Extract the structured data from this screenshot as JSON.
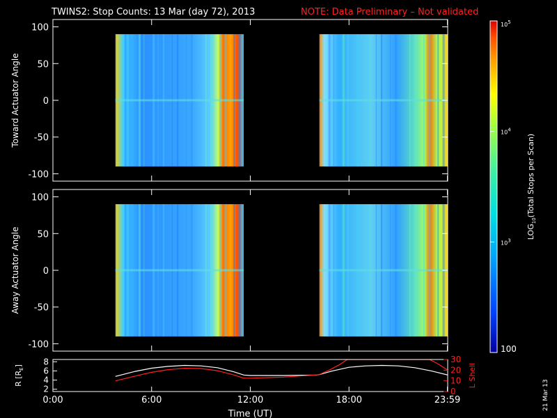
{
  "header": {
    "title": "TWINS2: Stop Counts: 13 Mar (day  72), 2013",
    "note": "NOTE: Data Preliminary – Not validated",
    "note_color": "#ff2020"
  },
  "stamp": "21 Mar 13",
  "chart_data": [
    {
      "type": "heatmap",
      "title": "",
      "xlabel": "",
      "ylabel": "Toward Actuator Angle",
      "xlim": [
        0,
        24
      ],
      "ylim": [
        -110,
        110
      ],
      "yticks": [
        "-100",
        "-50",
        "0",
        "50",
        "100"
      ],
      "data_intervals_ut_hours": [
        [
          3.8,
          11.6
        ],
        [
          16.2,
          24.0
        ]
      ],
      "angle_range": [
        -90,
        90
      ],
      "colorscale": "log",
      "note": ""
    },
    {
      "type": "heatmap",
      "title": "",
      "xlabel": "",
      "ylabel": "Away Actuator Angle",
      "xlim": [
        0,
        24
      ],
      "ylim": [
        -110,
        110
      ],
      "yticks": [
        "-100",
        "-50",
        "0",
        "50",
        "100"
      ],
      "data_intervals_ut_hours": [
        [
          3.8,
          11.6
        ],
        [
          16.2,
          24.0
        ]
      ],
      "angle_range": [
        -90,
        90
      ],
      "colorscale": "log"
    },
    {
      "type": "line",
      "title": "",
      "xlabel": "Time (UT)",
      "ylabel_left": "R [R",
      "ylabel_left_sub": "E",
      "ylabel_left_end": "]",
      "ylabel_right": "L Shell",
      "xlim": [
        0,
        24
      ],
      "ylim_left": [
        1.5,
        8.5
      ],
      "ylim_right": [
        0,
        30
      ],
      "yticks_left": [
        "2",
        "4",
        "6",
        "8"
      ],
      "yticks_right": [
        "0",
        "10",
        "20",
        "30"
      ],
      "xtick_labels": [
        "0:00",
        "6:00",
        "12:00",
        "18:00",
        "23:59"
      ],
      "xtick_values": [
        0,
        6,
        12,
        18,
        23.98
      ],
      "series": [
        {
          "name": "R",
          "color": "#ffffff",
          "axis": "left",
          "x": [
            3.8,
            5,
            6,
            7,
            8,
            9,
            10,
            11,
            11.6,
            12,
            14,
            16,
            16.2,
            17,
            18,
            19,
            20,
            21,
            22,
            23,
            24
          ],
          "y": [
            4.8,
            5.9,
            6.6,
            7.0,
            7.2,
            7.1,
            6.7,
            5.8,
            5.1,
            5.0,
            5.0,
            5.1,
            5.2,
            6.0,
            6.8,
            7.1,
            7.2,
            7.1,
            6.7,
            6.0,
            5.1
          ]
        },
        {
          "name": "L Shell",
          "color": "#ff2020",
          "axis": "right",
          "x": [
            3.8,
            5,
            6,
            7,
            8,
            9,
            10,
            11,
            11.6,
            12,
            14,
            16,
            16.2,
            16.8,
            17.4,
            17.9,
            22.9,
            23.4,
            24
          ],
          "y": [
            10.0,
            14.5,
            18.0,
            20.5,
            21.8,
            21.5,
            19.5,
            15.5,
            12.5,
            12.5,
            13.5,
            15.5,
            16.0,
            20.0,
            25.0,
            30.0,
            30.0,
            26.0,
            20.0
          ]
        }
      ]
    }
  ],
  "colorbar": {
    "label_pre": "LOG",
    "label_sub": "10",
    "label_post": "(Total Stops per Scan)",
    "ticks": [
      "100",
      "10",
      "10",
      "10"
    ],
    "tick_exponents": [
      "",
      "3",
      "4",
      "5"
    ],
    "tick_values": [
      100,
      1000,
      10000,
      100000
    ],
    "range": [
      100,
      100000
    ],
    "colors": [
      "#0000a0",
      "#0040ff",
      "#00a0ff",
      "#00e0e0",
      "#40f0a0",
      "#a0ff40",
      "#ffff00",
      "#ffa000",
      "#ff5000",
      "#e00000"
    ]
  }
}
